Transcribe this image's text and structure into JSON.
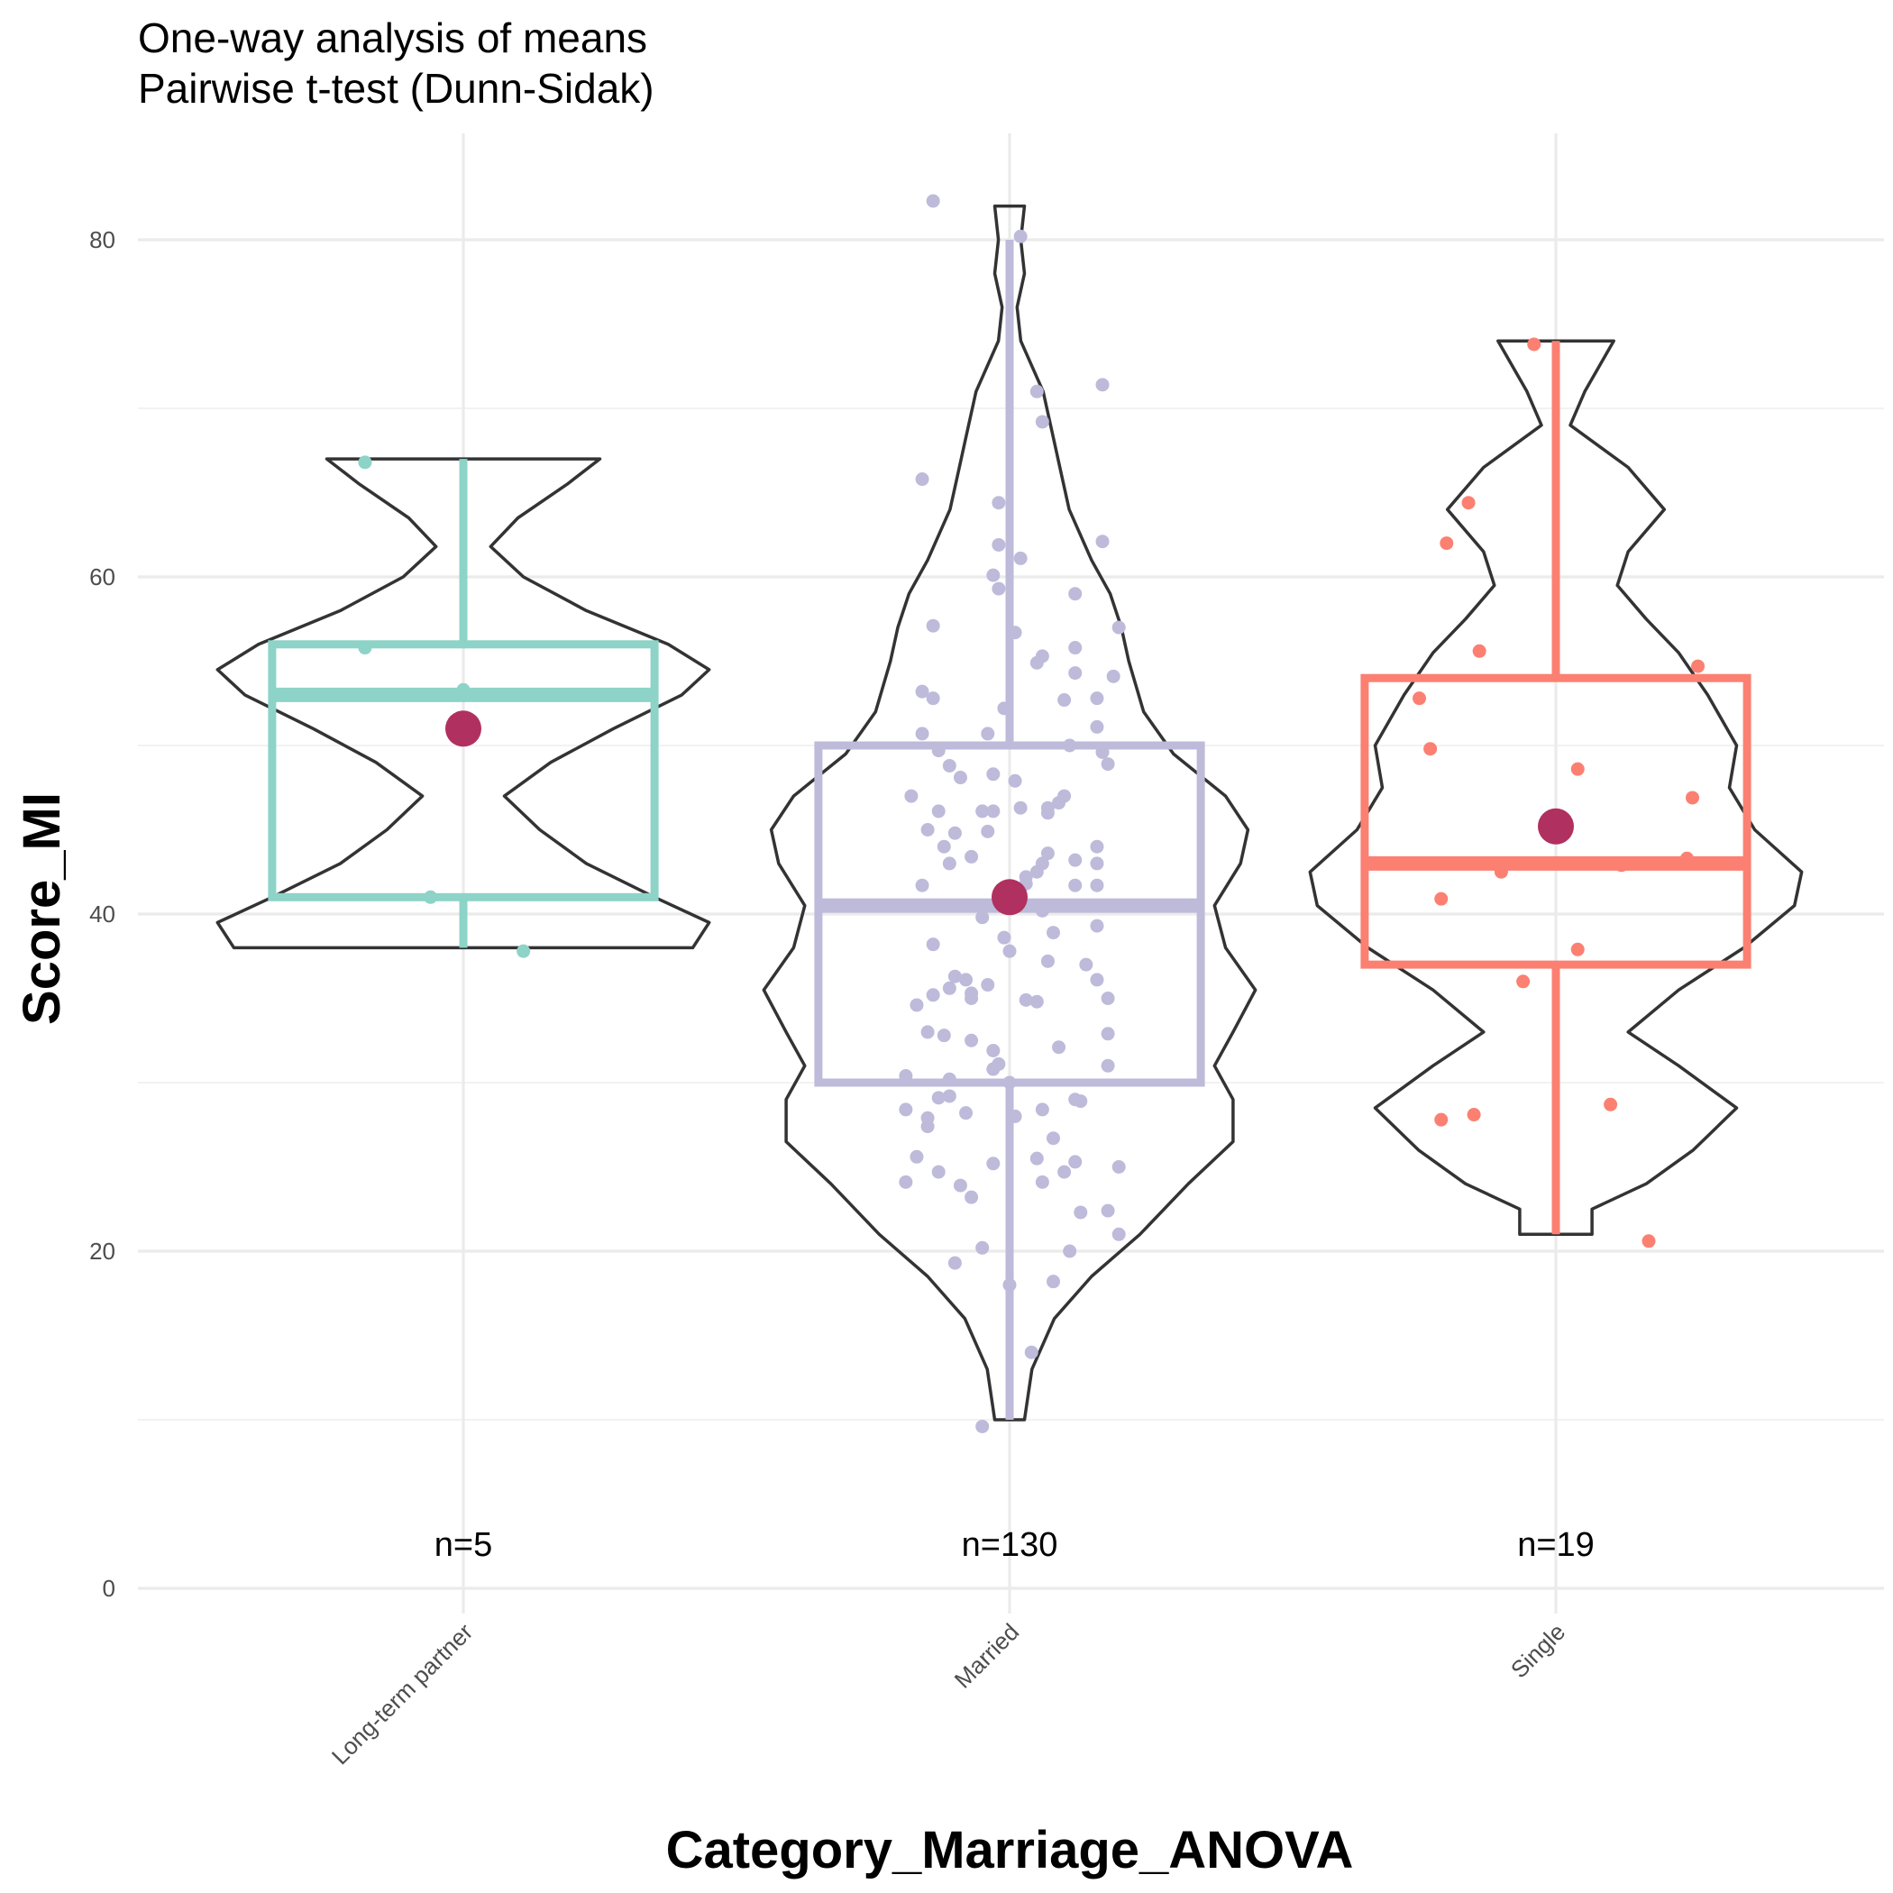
{
  "chart_data": {
    "type": "violin-box",
    "title": "One-way analysis of means",
    "subtitle": "Pairwise t-test (Dunn-Sidak)",
    "xlabel": "Category_Marriage_ANOVA",
    "ylabel": "Score_MI",
    "ylim": [
      0,
      85
    ],
    "yticks": [
      0,
      20,
      40,
      60,
      80
    ],
    "grid": true,
    "categories": [
      "Long-term partner",
      "Married",
      "Single"
    ],
    "series": [
      {
        "category": "Long-term partner",
        "color": "#8dd3c7",
        "n_label": "n=5",
        "min": 38,
        "q1": 41,
        "median": 53,
        "q3": 56,
        "max": 67,
        "mean": 51,
        "points": [
          [
            -0.18,
            66.8
          ],
          [
            -0.18,
            55.8
          ],
          [
            -0.06,
            41.0
          ],
          [
            0.11,
            37.8
          ],
          [
            0.0,
            53.3
          ]
        ],
        "violin": [
          [
            38,
            0.84
          ],
          [
            39.5,
            0.9
          ],
          [
            41,
            0.7
          ],
          [
            43,
            0.45
          ],
          [
            45,
            0.28
          ],
          [
            47,
            0.15
          ],
          [
            49,
            0.32
          ],
          [
            51,
            0.55
          ],
          [
            53,
            0.8
          ],
          [
            54.5,
            0.9
          ],
          [
            56,
            0.75
          ],
          [
            58,
            0.45
          ],
          [
            60,
            0.22
          ],
          [
            61.8,
            0.1
          ],
          [
            63.5,
            0.2
          ],
          [
            65.5,
            0.38
          ],
          [
            67,
            0.5
          ]
        ]
      },
      {
        "category": "Married",
        "color": "#bebada",
        "n_label": "n=130",
        "min": 10,
        "q1": 30,
        "median": 40.5,
        "q3": 50,
        "max": 80,
        "mean": 41,
        "points": [
          [
            -0.14,
            82.3
          ],
          [
            0.02,
            80.2
          ],
          [
            -0.16,
            65.8
          ],
          [
            0.05,
            71.0
          ],
          [
            0.17,
            71.4
          ],
          [
            0.06,
            69.2
          ],
          [
            -0.02,
            64.4
          ],
          [
            0.17,
            62.1
          ],
          [
            -0.02,
            61.9
          ],
          [
            0.02,
            61.1
          ],
          [
            -0.03,
            60.1
          ],
          [
            -0.02,
            59.3
          ],
          [
            0.12,
            59.0
          ],
          [
            -0.14,
            57.1
          ],
          [
            0.01,
            56.7
          ],
          [
            0.2,
            57.0
          ],
          [
            0.12,
            55.8
          ],
          [
            0.06,
            55.3
          ],
          [
            0.05,
            54.9
          ],
          [
            0.12,
            54.3
          ],
          [
            0.19,
            54.1
          ],
          [
            -0.16,
            53.2
          ],
          [
            -0.14,
            52.8
          ],
          [
            0.1,
            52.7
          ],
          [
            0.16,
            52.8
          ],
          [
            -0.01,
            52.2
          ],
          [
            0.16,
            51.1
          ],
          [
            -0.04,
            50.7
          ],
          [
            -0.16,
            50.7
          ],
          [
            0.11,
            50.0
          ],
          [
            -0.13,
            49.7
          ],
          [
            0.17,
            49.6
          ],
          [
            0.18,
            48.9
          ],
          [
            -0.11,
            48.8
          ],
          [
            -0.09,
            48.1
          ],
          [
            -0.03,
            48.3
          ],
          [
            0.01,
            47.9
          ],
          [
            -0.18,
            47.0
          ],
          [
            -0.13,
            46.1
          ],
          [
            0.09,
            46.6
          ],
          [
            0.07,
            46.3
          ],
          [
            -0.05,
            46.1
          ],
          [
            -0.03,
            46.1
          ],
          [
            0.02,
            46.3
          ],
          [
            0.07,
            46.0
          ],
          [
            -0.15,
            45.0
          ],
          [
            -0.1,
            44.8
          ],
          [
            -0.04,
            44.9
          ],
          [
            0.16,
            44.0
          ],
          [
            0.07,
            43.6
          ],
          [
            -0.07,
            43.4
          ],
          [
            0.12,
            43.2
          ],
          [
            0.06,
            43.0
          ],
          [
            -0.11,
            43.0
          ],
          [
            0.16,
            43.0
          ],
          [
            0.05,
            42.5
          ],
          [
            0.03,
            42.2
          ],
          [
            0.03,
            41.8
          ],
          [
            -0.16,
            41.7
          ],
          [
            0.12,
            41.7
          ],
          [
            0.16,
            41.7
          ],
          [
            0.16,
            39.3
          ],
          [
            0.08,
            38.9
          ],
          [
            -0.01,
            38.6
          ],
          [
            -0.14,
            38.2
          ],
          [
            0.0,
            37.8
          ],
          [
            0.07,
            37.2
          ],
          [
            -0.1,
            36.3
          ],
          [
            -0.08,
            36.1
          ],
          [
            0.16,
            36.1
          ],
          [
            -0.04,
            35.8
          ],
          [
            -0.11,
            35.6
          ],
          [
            -0.14,
            35.2
          ],
          [
            -0.07,
            35.0
          ],
          [
            -0.07,
            35.3
          ],
          [
            0.03,
            34.9
          ],
          [
            0.05,
            34.8
          ],
          [
            0.18,
            35.0
          ],
          [
            -0.17,
            34.6
          ],
          [
            -0.15,
            33.0
          ],
          [
            0.18,
            32.9
          ],
          [
            -0.12,
            32.8
          ],
          [
            -0.07,
            32.5
          ],
          [
            -0.03,
            31.9
          ],
          [
            0.09,
            32.1
          ],
          [
            -0.02,
            31.1
          ],
          [
            0.18,
            31.0
          ],
          [
            -0.03,
            30.8
          ],
          [
            -0.19,
            30.4
          ],
          [
            -0.11,
            30.2
          ],
          [
            0.0,
            30.0
          ],
          [
            -0.13,
            29.1
          ],
          [
            -0.11,
            29.2
          ],
          [
            0.13,
            28.9
          ],
          [
            0.12,
            29.0
          ],
          [
            -0.19,
            28.4
          ],
          [
            0.06,
            28.4
          ],
          [
            -0.08,
            28.2
          ],
          [
            0.01,
            28.0
          ],
          [
            -0.15,
            27.9
          ],
          [
            -0.15,
            27.4
          ],
          [
            0.08,
            26.7
          ],
          [
            -0.17,
            25.6
          ],
          [
            0.05,
            25.5
          ],
          [
            -0.03,
            25.2
          ],
          [
            0.12,
            25.3
          ],
          [
            0.2,
            25.0
          ],
          [
            -0.13,
            24.7
          ],
          [
            0.1,
            24.7
          ],
          [
            0.06,
            24.1
          ],
          [
            -0.19,
            24.1
          ],
          [
            -0.09,
            23.9
          ],
          [
            -0.07,
            23.2
          ],
          [
            0.18,
            22.4
          ],
          [
            0.13,
            22.3
          ],
          [
            0.2,
            21.0
          ],
          [
            0.11,
            20.0
          ],
          [
            -0.05,
            20.2
          ],
          [
            -0.1,
            19.3
          ],
          [
            0.08,
            18.2
          ],
          [
            0.0,
            18.0
          ],
          [
            0.04,
            14.0
          ],
          [
            -0.05,
            9.6
          ],
          [
            0.0,
            40.5
          ],
          [
            0.06,
            40.2
          ],
          [
            -0.05,
            39.8
          ],
          [
            0.1,
            47.0
          ],
          [
            -0.12,
            44.0
          ],
          [
            0.14,
            37.0
          ]
        ],
        "violin": [
          [
            10,
            0.04
          ],
          [
            13,
            0.06
          ],
          [
            16,
            0.12
          ],
          [
            18.5,
            0.22
          ],
          [
            21,
            0.35
          ],
          [
            24,
            0.48
          ],
          [
            26.5,
            0.6
          ],
          [
            29,
            0.6
          ],
          [
            31,
            0.55
          ],
          [
            33,
            0.6
          ],
          [
            35.5,
            0.66
          ],
          [
            38,
            0.58
          ],
          [
            40.5,
            0.55
          ],
          [
            43,
            0.62
          ],
          [
            45,
            0.64
          ],
          [
            47,
            0.58
          ],
          [
            49.5,
            0.44
          ],
          [
            52,
            0.36
          ],
          [
            55,
            0.32
          ],
          [
            57,
            0.3
          ],
          [
            59,
            0.27
          ],
          [
            61,
            0.22
          ],
          [
            64,
            0.16
          ],
          [
            66,
            0.14
          ],
          [
            68,
            0.12
          ],
          [
            71,
            0.09
          ],
          [
            74,
            0.03
          ],
          [
            76,
            0.02
          ],
          [
            78,
            0.04
          ],
          [
            80,
            0.03
          ],
          [
            82,
            0.04
          ]
        ]
      },
      {
        "category": "Single",
        "color": "#fb8072",
        "n_label": "n=19",
        "min": 21,
        "q1": 37,
        "median": 43,
        "q3": 54,
        "max": 74,
        "mean": 45.2,
        "points": [
          [
            -0.04,
            73.8
          ],
          [
            -0.16,
            64.4
          ],
          [
            -0.2,
            62.0
          ],
          [
            -0.14,
            55.6
          ],
          [
            0.26,
            54.7
          ],
          [
            -0.25,
            52.8
          ],
          [
            -0.23,
            49.8
          ],
          [
            0.04,
            48.6
          ],
          [
            0.25,
            46.9
          ],
          [
            0.24,
            43.3
          ],
          [
            0.12,
            42.9
          ],
          [
            -0.1,
            42.5
          ],
          [
            -0.21,
            40.9
          ],
          [
            0.04,
            37.9
          ],
          [
            -0.06,
            36.0
          ],
          [
            0.1,
            28.7
          ],
          [
            -0.15,
            28.1
          ],
          [
            -0.21,
            27.8
          ],
          [
            0.17,
            20.6
          ]
        ],
        "violin": [
          [
            21,
            0.1
          ],
          [
            22.5,
            0.1
          ],
          [
            24,
            0.25
          ],
          [
            26,
            0.38
          ],
          [
            28.5,
            0.5
          ],
          [
            31,
            0.34
          ],
          [
            33,
            0.2
          ],
          [
            35.5,
            0.34
          ],
          [
            38,
            0.52
          ],
          [
            40.5,
            0.66
          ],
          [
            42.5,
            0.68
          ],
          [
            45,
            0.55
          ],
          [
            47.5,
            0.48
          ],
          [
            50,
            0.5
          ],
          [
            53,
            0.42
          ],
          [
            55.5,
            0.34
          ],
          [
            57.5,
            0.25
          ],
          [
            59.5,
            0.17
          ],
          [
            61.5,
            0.2
          ],
          [
            64,
            0.3
          ],
          [
            66.5,
            0.2
          ],
          [
            69,
            0.04
          ],
          [
            71,
            0.08
          ],
          [
            74,
            0.16
          ]
        ]
      }
    ]
  }
}
